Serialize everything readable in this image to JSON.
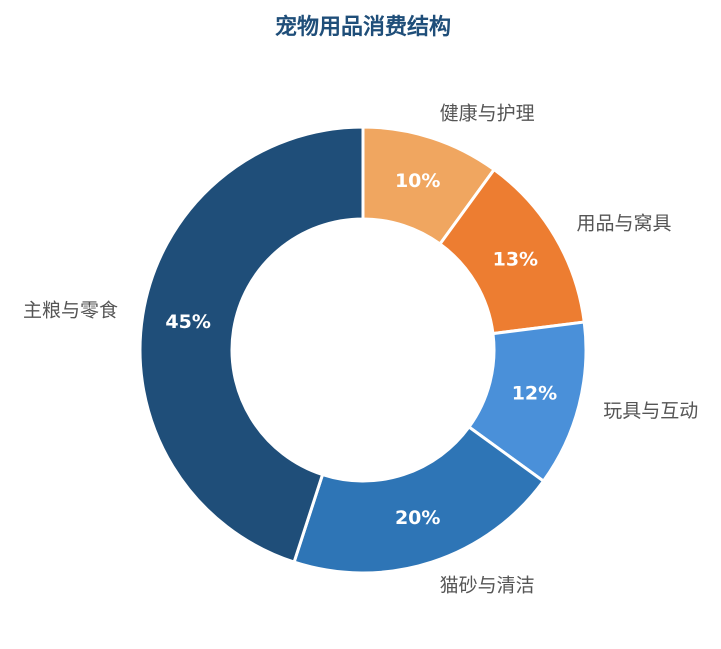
{
  "chart_data": {
    "type": "pie",
    "title": "宠物用品消费结构",
    "categories": [
      "健康与护理",
      "用品与窝具",
      "玩具与互动",
      "猫砂与清洁",
      "主粮与零食"
    ],
    "values": [
      10,
      13,
      12,
      20,
      45
    ],
    "value_labels": [
      "10%",
      "13%",
      "12%",
      "20%",
      "45%"
    ],
    "colors": [
      "#f0a660",
      "#ed7d31",
      "#4a90d9",
      "#2e75b6",
      "#1f4e79"
    ]
  }
}
